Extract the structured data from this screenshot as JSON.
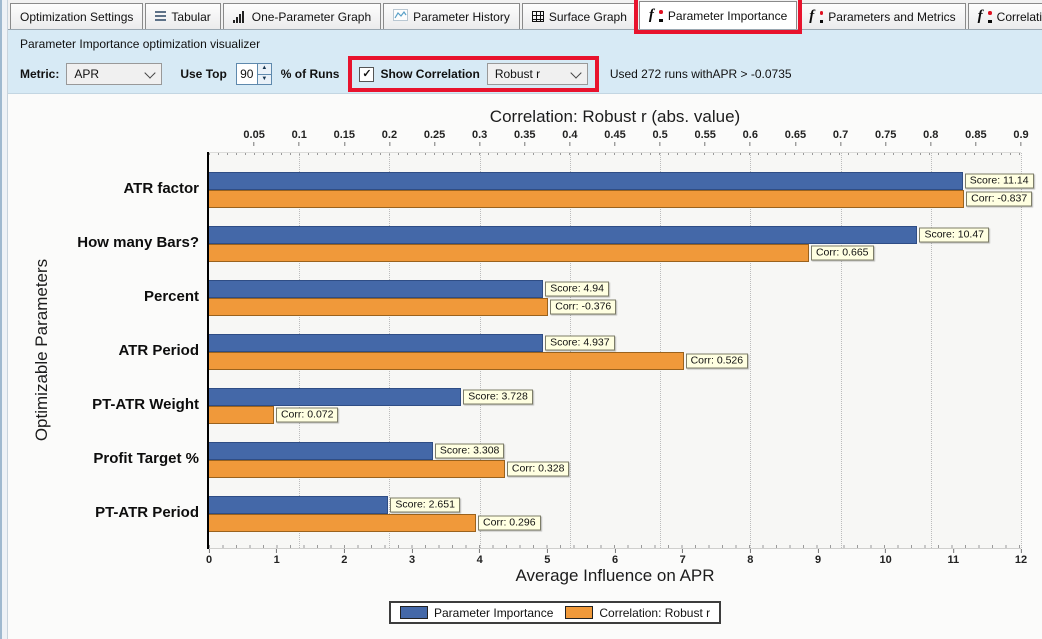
{
  "colors": {
    "highlight_red": "#e8132d",
    "bar_blue": "#4468a8",
    "bar_orange": "#f0993a",
    "toolbar_bg": "#d7eaf5",
    "value_label_bg": "#ffffe1"
  },
  "tabs": [
    {
      "label": "Optimization Settings",
      "icon": "none",
      "selected": false,
      "highlighted": false
    },
    {
      "label": "Tabular",
      "icon": "list",
      "selected": false,
      "highlighted": false
    },
    {
      "label": "One-Parameter Graph",
      "icon": "bar-chart",
      "selected": false,
      "highlighted": false
    },
    {
      "label": "Parameter History",
      "icon": "line-chart",
      "selected": false,
      "highlighted": false
    },
    {
      "label": "Surface Graph",
      "icon": "grid",
      "selected": false,
      "highlighted": false
    },
    {
      "label": "Parameter Importance",
      "icon": "fi",
      "selected": true,
      "highlighted": true
    },
    {
      "label": "Parameters and Metrics",
      "icon": "fi",
      "selected": false,
      "highlighted": false
    },
    {
      "label": "Correlations",
      "icon": "fi",
      "selected": false,
      "highlighted": false
    }
  ],
  "toolbar": {
    "subtitle": "Parameter Importance optimization visualizer",
    "metric_label": "Metric:",
    "metric_value": "APR",
    "use_top_label": "Use Top",
    "use_top_value": "90",
    "pct_runs_label": "% of Runs",
    "show_correlation_label": "Show Correlation",
    "show_correlation_checked": true,
    "checkmark": "✓",
    "correlation_type": "Robust r",
    "status_text": "Used 272 runs withAPR >  -0.0735"
  },
  "chart_data": {
    "type": "bar",
    "orientation": "horizontal-grouped",
    "title_top": "Correlation: Robust r (abs. value)",
    "xlabel_bottom": "Average Influence on APR",
    "ylabel": "Optimizable Parameters",
    "categories": [
      "ATR factor",
      "How many Bars?",
      "Percent",
      "ATR Period",
      "PT-ATR Weight",
      "Profit Target %",
      "PT-ATR Period"
    ],
    "series": [
      {
        "name": "Parameter Importance",
        "color": "#4468a8",
        "axis": "bottom",
        "label_prefix": "Score: ",
        "values": [
          11.14,
          10.47,
          4.94,
          4.937,
          3.728,
          3.308,
          2.651
        ]
      },
      {
        "name": "Correlation: Robust r",
        "color": "#f0993a",
        "axis": "top",
        "label_prefix": "Corr: ",
        "values": [
          -0.837,
          0.665,
          -0.376,
          0.526,
          0.072,
          0.328,
          0.296
        ]
      }
    ],
    "bottom_axis": {
      "min": 0,
      "max": 12,
      "ticks": [
        0,
        1,
        2,
        3,
        4,
        5,
        6,
        7,
        8,
        9,
        10,
        11,
        12
      ]
    },
    "top_axis": {
      "min": 0,
      "max": 0.9,
      "ticks": [
        0.05,
        0.1,
        0.15,
        0.2,
        0.25,
        0.3,
        0.35,
        0.4,
        0.45,
        0.5,
        0.55,
        0.6,
        0.65,
        0.7,
        0.75,
        0.8,
        0.85,
        0.9
      ]
    },
    "grid": "vertical dotted lines at top-axis 0.1 intervals",
    "legend_position": "bottom-center",
    "legend": [
      "Parameter Importance",
      "Correlation: Robust r"
    ]
  }
}
